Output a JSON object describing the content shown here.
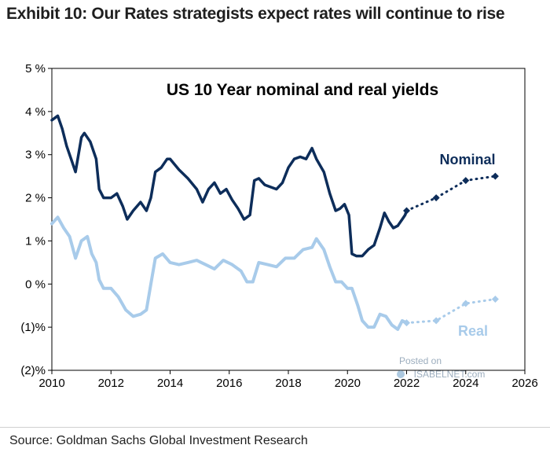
{
  "exhibit_title": "Exhibit 10: Our Rates strategists expect rates will continue to rise",
  "source": "Source: Goldman Sachs Global Investment Research",
  "watermark": {
    "line1": "Posted on",
    "line2": "ISABELNET.com"
  },
  "colors": {
    "nominal": "#0d2d5a",
    "real": "#a8cbea",
    "frame": "#000000"
  },
  "chart_data": {
    "type": "line",
    "title": "US 10 Year nominal and real yields",
    "xlabel": "",
    "ylabel": "",
    "xlim": [
      2010,
      2026
    ],
    "ylim": [
      -2,
      5
    ],
    "x_ticks": [
      2010,
      2012,
      2014,
      2016,
      2018,
      2020,
      2022,
      2024,
      2026
    ],
    "x_tick_labels": [
      "2010",
      "2012",
      "2014",
      "2016",
      "2018",
      "2020",
      "2022",
      "2024",
      "2026"
    ],
    "y_ticks": [
      -2,
      -1,
      0,
      1,
      2,
      3,
      4,
      5
    ],
    "y_tick_labels": [
      "(2)%",
      "(1)%",
      "0 %",
      "1 %",
      "2 %",
      "3 %",
      "4 %",
      "5 %"
    ],
    "grid": false,
    "series": [
      {
        "name": "Nominal",
        "label": "Nominal",
        "color": "#0d2d5a",
        "x": [
          2010.0,
          2010.2,
          2010.35,
          2010.5,
          2010.65,
          2010.8,
          2011.0,
          2011.1,
          2011.3,
          2011.5,
          2011.6,
          2011.75,
          2012.0,
          2012.2,
          2012.4,
          2012.55,
          2012.75,
          2013.0,
          2013.2,
          2013.35,
          2013.5,
          2013.7,
          2013.9,
          2014.0,
          2014.3,
          2014.6,
          2014.9,
          2015.1,
          2015.3,
          2015.5,
          2015.7,
          2015.9,
          2016.1,
          2016.3,
          2016.5,
          2016.7,
          2016.85,
          2017.0,
          2017.2,
          2017.4,
          2017.6,
          2017.8,
          2018.0,
          2018.2,
          2018.4,
          2018.6,
          2018.8,
          2018.95,
          2019.2,
          2019.4,
          2019.6,
          2019.75,
          2019.9,
          2020.05,
          2020.15,
          2020.3,
          2020.5,
          2020.7,
          2020.9,
          2021.1,
          2021.25,
          2021.4,
          2021.55,
          2021.7,
          2021.85,
          2021.95,
          2022.0
        ],
        "y": [
          3.8,
          3.9,
          3.6,
          3.2,
          2.9,
          2.6,
          3.4,
          3.5,
          3.3,
          2.9,
          2.2,
          2.0,
          2.0,
          2.1,
          1.8,
          1.5,
          1.7,
          1.9,
          1.7,
          2.0,
          2.6,
          2.7,
          2.9,
          2.9,
          2.65,
          2.45,
          2.2,
          1.9,
          2.2,
          2.35,
          2.1,
          2.2,
          1.95,
          1.75,
          1.5,
          1.6,
          2.4,
          2.45,
          2.3,
          2.25,
          2.2,
          2.35,
          2.7,
          2.9,
          2.95,
          2.9,
          3.15,
          2.9,
          2.6,
          2.1,
          1.7,
          1.75,
          1.85,
          1.6,
          0.7,
          0.65,
          0.65,
          0.8,
          0.9,
          1.3,
          1.65,
          1.45,
          1.3,
          1.35,
          1.5,
          1.6,
          1.7
        ]
      },
      {
        "name": "Real",
        "label": "Real",
        "color": "#a8cbea",
        "x": [
          2010.0,
          2010.2,
          2010.4,
          2010.6,
          2010.8,
          2011.0,
          2011.2,
          2011.35,
          2011.5,
          2011.6,
          2011.75,
          2012.0,
          2012.25,
          2012.5,
          2012.75,
          2013.0,
          2013.2,
          2013.35,
          2013.5,
          2013.75,
          2014.0,
          2014.3,
          2014.6,
          2014.9,
          2015.2,
          2015.5,
          2015.8,
          2016.1,
          2016.4,
          2016.6,
          2016.8,
          2017.0,
          2017.3,
          2017.6,
          2017.9,
          2018.2,
          2018.5,
          2018.8,
          2018.95,
          2019.2,
          2019.4,
          2019.6,
          2019.8,
          2020.0,
          2020.15,
          2020.35,
          2020.5,
          2020.7,
          2020.9,
          2021.1,
          2021.3,
          2021.5,
          2021.7,
          2021.85,
          2022.0
        ],
        "y": [
          1.4,
          1.55,
          1.3,
          1.1,
          0.6,
          1.0,
          1.1,
          0.7,
          0.5,
          0.1,
          -0.1,
          -0.1,
          -0.3,
          -0.6,
          -0.75,
          -0.7,
          -0.6,
          0.0,
          0.6,
          0.7,
          0.5,
          0.45,
          0.5,
          0.55,
          0.45,
          0.35,
          0.55,
          0.45,
          0.3,
          0.05,
          0.05,
          0.5,
          0.45,
          0.4,
          0.6,
          0.6,
          0.8,
          0.85,
          1.05,
          0.8,
          0.4,
          0.05,
          0.05,
          -0.1,
          -0.1,
          -0.5,
          -0.85,
          -1.0,
          -1.0,
          -0.7,
          -0.75,
          -0.95,
          -1.05,
          -0.85,
          -0.9
        ]
      },
      {
        "name": "Nominal forecast",
        "label": "",
        "color": "#0d2d5a",
        "x": [
          2022.0,
          2023.0,
          2024.0,
          2025.0
        ],
        "y": [
          1.7,
          2.0,
          2.4,
          2.5
        ]
      },
      {
        "name": "Real forecast",
        "label": "",
        "color": "#a8cbea",
        "x": [
          2022.0,
          2023.0,
          2024.0,
          2025.0
        ],
        "y": [
          -0.9,
          -0.85,
          -0.45,
          -0.35
        ]
      }
    ]
  }
}
